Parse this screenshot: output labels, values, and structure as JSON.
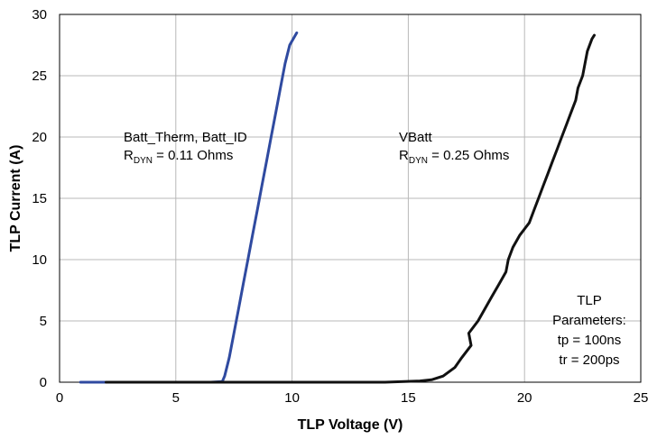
{
  "chart_data": {
    "type": "line",
    "xlabel": "TLP Voltage (V)",
    "ylabel": "TLP Current (A)",
    "xlim": [
      0,
      25
    ],
    "ylim": [
      0,
      30
    ],
    "x_ticks": [
      "0",
      "5",
      "10",
      "15",
      "20",
      "25"
    ],
    "y_ticks": [
      "0",
      "5",
      "10",
      "15",
      "20",
      "25",
      "30"
    ],
    "grid": true,
    "series": [
      {
        "color": "#2f4aa0",
        "points": [
          [
            0.9,
            0
          ],
          [
            3,
            0
          ],
          [
            5,
            0
          ],
          [
            6.5,
            0
          ],
          [
            7.0,
            0.05
          ],
          [
            7.1,
            0.5
          ],
          [
            7.3,
            2
          ],
          [
            7.5,
            4
          ],
          [
            7.7,
            6
          ],
          [
            7.9,
            8
          ],
          [
            8.1,
            10
          ],
          [
            8.3,
            12
          ],
          [
            8.5,
            14
          ],
          [
            8.7,
            16
          ],
          [
            8.9,
            18
          ],
          [
            9.1,
            20
          ],
          [
            9.3,
            22
          ],
          [
            9.5,
            24
          ],
          [
            9.7,
            26
          ],
          [
            9.9,
            27.5
          ],
          [
            10.2,
            28.5
          ]
        ]
      },
      {
        "color": "#111111",
        "points": [
          [
            2,
            0
          ],
          [
            6,
            0
          ],
          [
            10,
            0
          ],
          [
            14,
            0
          ],
          [
            15.5,
            0.1
          ],
          [
            16.0,
            0.2
          ],
          [
            16.5,
            0.5
          ],
          [
            17.0,
            1.2
          ],
          [
            17.3,
            2
          ],
          [
            17.7,
            3
          ],
          [
            17.6,
            4
          ],
          [
            18.0,
            5
          ],
          [
            18.3,
            6
          ],
          [
            18.6,
            7
          ],
          [
            18.9,
            8
          ],
          [
            19.2,
            9
          ],
          [
            19.3,
            10
          ],
          [
            19.5,
            11
          ],
          [
            19.8,
            12
          ],
          [
            20.2,
            13
          ],
          [
            20.4,
            14
          ],
          [
            20.6,
            15
          ],
          [
            20.8,
            16
          ],
          [
            21.0,
            17
          ],
          [
            21.2,
            18
          ],
          [
            21.4,
            19
          ],
          [
            21.6,
            20
          ],
          [
            21.8,
            21
          ],
          [
            22.0,
            22
          ],
          [
            22.2,
            23
          ],
          [
            22.3,
            24
          ],
          [
            22.5,
            25
          ],
          [
            22.6,
            26
          ],
          [
            22.7,
            27
          ],
          [
            22.9,
            28
          ],
          [
            23.0,
            28.3
          ]
        ]
      }
    ],
    "annotations": {
      "left_line1": "Batt_Therm, Batt_ID",
      "left_r": "R",
      "left_sub": "DYN",
      "left_val": " = 0.11 Ohms",
      "right_line1": "VBatt",
      "right_r": "R",
      "right_sub": "DYN",
      "right_val": " = 0.25 Ohms",
      "params": [
        "TLP",
        "Parameters:",
        "tp = 100ns",
        "tr = 200ps"
      ]
    }
  }
}
